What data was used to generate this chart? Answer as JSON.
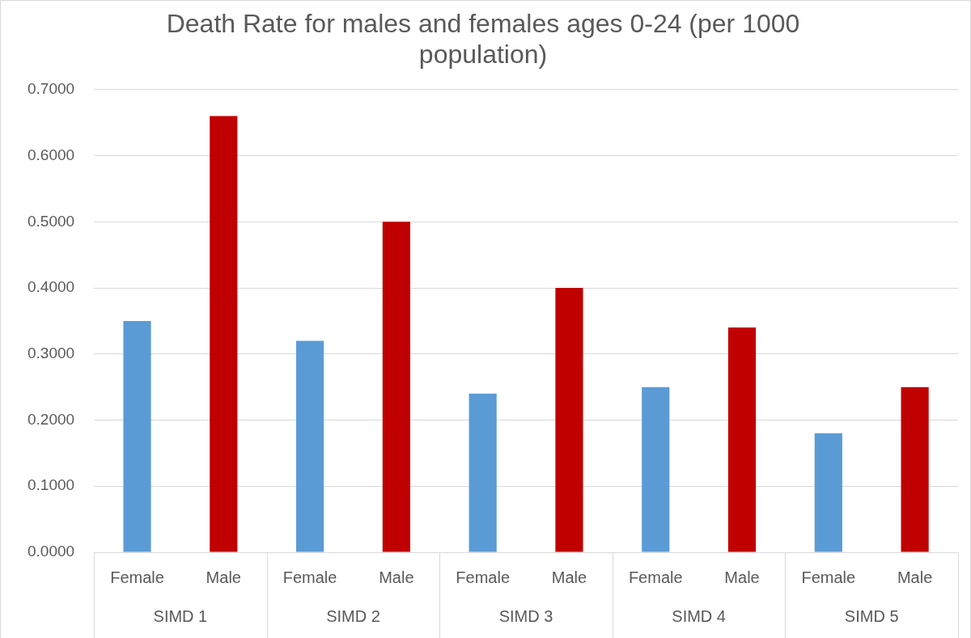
{
  "chart_data": {
    "type": "bar",
    "title": "Death Rate for males and females ages 0-24 (per 1000 population)",
    "categories": [
      "SIMD 1",
      "SIMD 2",
      "SIMD 3",
      "SIMD 4",
      "SIMD 5"
    ],
    "series": [
      {
        "name": "Female",
        "color": "#5b9bd5",
        "values": [
          0.35,
          0.32,
          0.24,
          0.25,
          0.18
        ]
      },
      {
        "name": "Male",
        "color": "#c00000",
        "values": [
          0.66,
          0.5,
          0.4,
          0.34,
          0.25
        ]
      }
    ],
    "ylim": [
      0,
      0.7
    ],
    "yticks": [
      {
        "value": 0,
        "label": "0.0000"
      },
      {
        "value": 0.1,
        "label": "0.1000"
      },
      {
        "value": 0.2,
        "label": "0.2000"
      },
      {
        "value": 0.3,
        "label": "0.3000"
      },
      {
        "value": 0.4,
        "label": "0.4000"
      },
      {
        "value": 0.5,
        "label": "0.5000"
      },
      {
        "value": 0.6,
        "label": "0.6000"
      },
      {
        "value": 0.7,
        "label": "0.7000"
      }
    ],
    "grid": "y",
    "legend": false
  }
}
